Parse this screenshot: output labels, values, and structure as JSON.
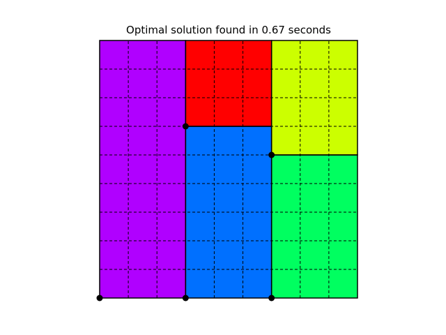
{
  "chart_data": {
    "type": "heatmap",
    "title": "Optimal solution found in 0.67 seconds",
    "xlabel": "",
    "ylabel": "",
    "xlim": [
      0,
      9
    ],
    "ylim": [
      0,
      9
    ],
    "grid": true,
    "rectangles": [
      {
        "x": 0,
        "y": 0,
        "w": 3,
        "h": 9,
        "color": "#B000FF"
      },
      {
        "x": 3,
        "y": 6,
        "w": 3,
        "h": 3,
        "color": "#FF0000"
      },
      {
        "x": 6,
        "y": 5,
        "w": 3,
        "h": 4,
        "color": "#CCFF00"
      },
      {
        "x": 3,
        "y": 0,
        "w": 3,
        "h": 6,
        "color": "#0070FF"
      },
      {
        "x": 6,
        "y": 0,
        "w": 3,
        "h": 5,
        "color": "#00FF60"
      }
    ],
    "points": [
      {
        "x": 0,
        "y": 0
      },
      {
        "x": 3,
        "y": 0
      },
      {
        "x": 6,
        "y": 0
      },
      {
        "x": 3,
        "y": 6
      },
      {
        "x": 6,
        "y": 5
      }
    ]
  }
}
